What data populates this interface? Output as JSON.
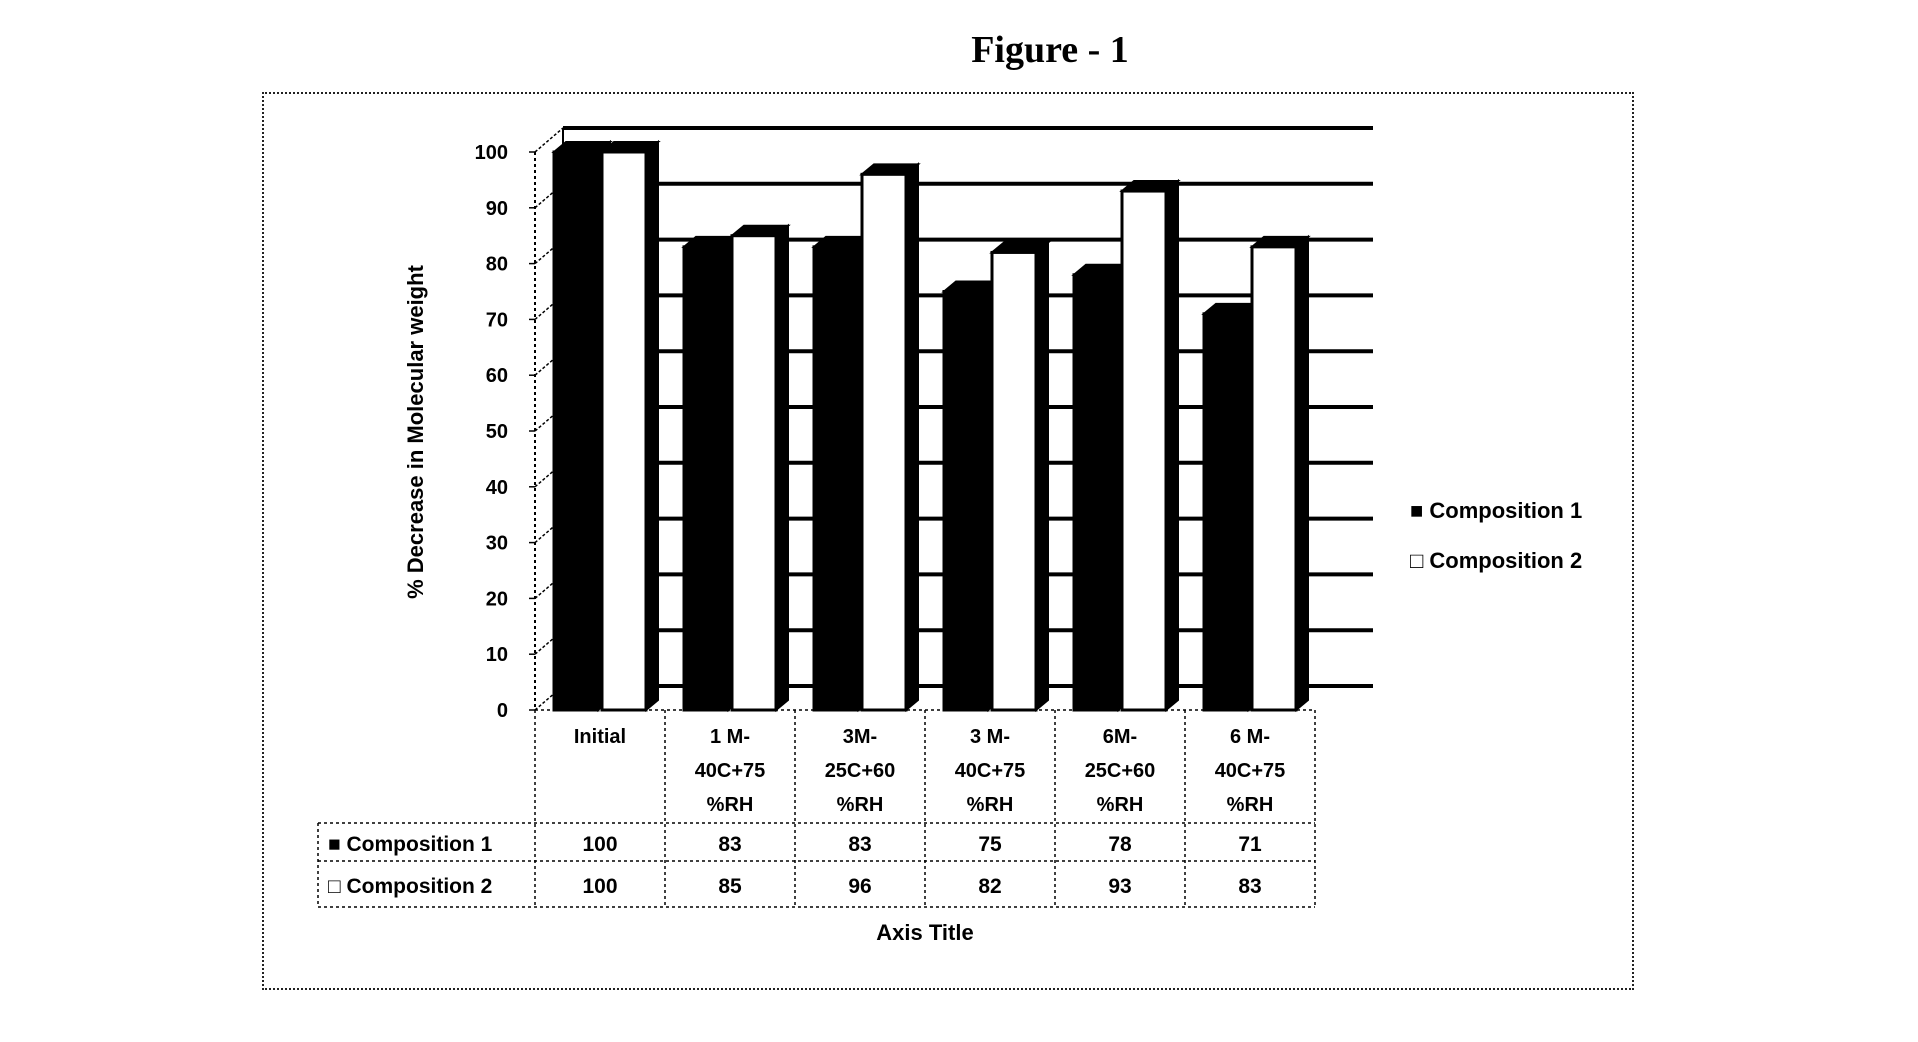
{
  "figure_title": "Figure - 1",
  "chart_data": {
    "type": "bar",
    "title": "",
    "ylabel": "% Decrease in Molecular weight",
    "xlabel": "Axis Title",
    "ylim": [
      0,
      100
    ],
    "yticks": [
      0,
      10,
      20,
      30,
      40,
      50,
      60,
      70,
      80,
      90,
      100
    ],
    "grid": true,
    "legend_position": "right",
    "categories": [
      [
        "Initial"
      ],
      [
        "1 M-",
        "40C+75",
        "%RH"
      ],
      [
        "3M-",
        "25C+60",
        "%RH"
      ],
      [
        "3 M-",
        "40C+75",
        "%RH"
      ],
      [
        "6M-",
        "25C+60",
        "%RH"
      ],
      [
        "6 M-",
        "40C+75",
        "%RH"
      ]
    ],
    "series": [
      {
        "name": "Composition 1",
        "values": [
          100,
          83,
          83,
          75,
          78,
          71
        ],
        "color": "#000000",
        "legend_marker": "■"
      },
      {
        "name": "Composition 2",
        "values": [
          100,
          85,
          96,
          82,
          93,
          83
        ],
        "color": "#ffffff",
        "legend_marker": "□"
      }
    ]
  }
}
